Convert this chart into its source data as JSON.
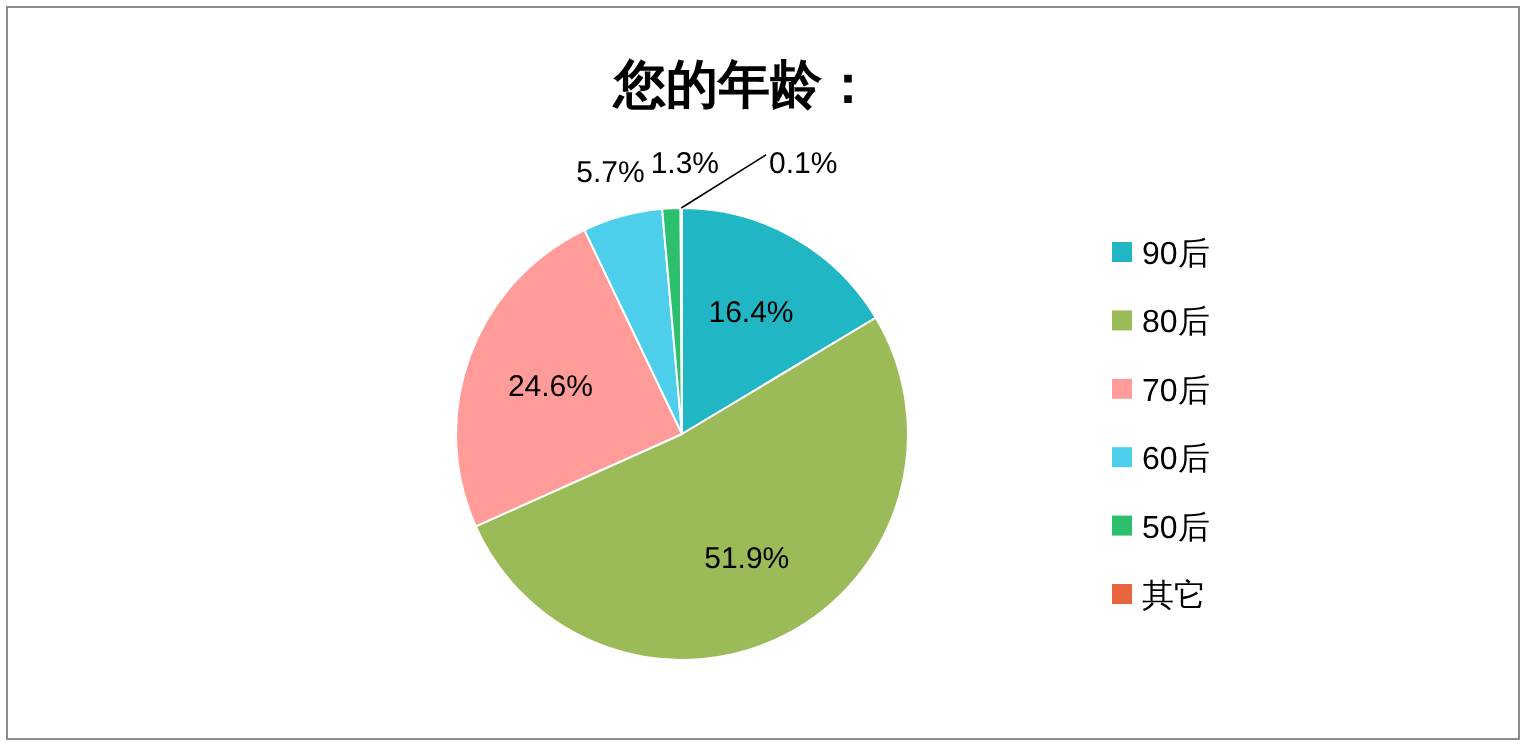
{
  "chart_data": {
    "type": "pie",
    "title": "您的年龄：",
    "categories": [
      "90后",
      "80后",
      "70后",
      "60后",
      "50后",
      "其它"
    ],
    "values": [
      16.4,
      51.9,
      24.6,
      5.7,
      1.3,
      0.1
    ],
    "value_labels": [
      "16.4%",
      "51.9%",
      "24.6%",
      "5.7%",
      "1.3%",
      "0.1%"
    ],
    "colors": [
      "#21b6c4",
      "#9bbb59",
      "#ff9c99",
      "#4dcfec",
      "#2cbf6e",
      "#e8643c"
    ],
    "legend": "right"
  }
}
